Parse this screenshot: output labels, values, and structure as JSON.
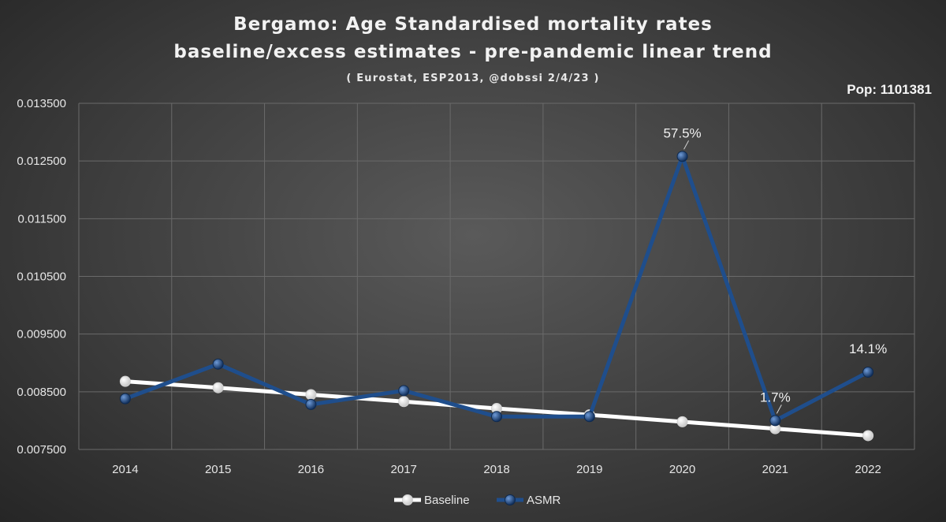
{
  "chart_data": {
    "type": "line",
    "title": "Bergamo: Age Standardised mortality rates",
    "subtitle_line2": "baseline/excess estimates - pre-pandemic linear trend",
    "source": "( Eurostat, ESP2013, @dobssi 2/4/23 )",
    "population_label": "Pop: 1101381",
    "categories": [
      "2014",
      "2015",
      "2016",
      "2017",
      "2018",
      "2019",
      "2020",
      "2021",
      "2022"
    ],
    "ylim": [
      0.0075,
      0.0135
    ],
    "yticks": [
      "0.007500",
      "0.008500",
      "0.009500",
      "0.010500",
      "0.011500",
      "0.012500",
      "0.013500"
    ],
    "ytick_values": [
      0.0075,
      0.0085,
      0.0095,
      0.0105,
      0.0115,
      0.0125,
      0.0135
    ],
    "grid": true,
    "legend_position": "bottom",
    "series": [
      {
        "name": "Baseline",
        "color": "#ffffff",
        "values": [
          0.00868,
          0.00857,
          0.00845,
          0.00833,
          0.00821,
          0.0081,
          0.00798,
          0.00786,
          0.00774
        ]
      },
      {
        "name": "ASMR",
        "color": "#1f4e8c",
        "values": [
          0.00838,
          0.00898,
          0.00828,
          0.00852,
          0.00807,
          0.00807,
          0.01258,
          0.008,
          0.00884
        ]
      }
    ],
    "annotations": [
      {
        "category": "2020",
        "text": "57.5%"
      },
      {
        "category": "2021",
        "text": "1.7%"
      },
      {
        "category": "2022",
        "text": "14.1%"
      }
    ]
  }
}
